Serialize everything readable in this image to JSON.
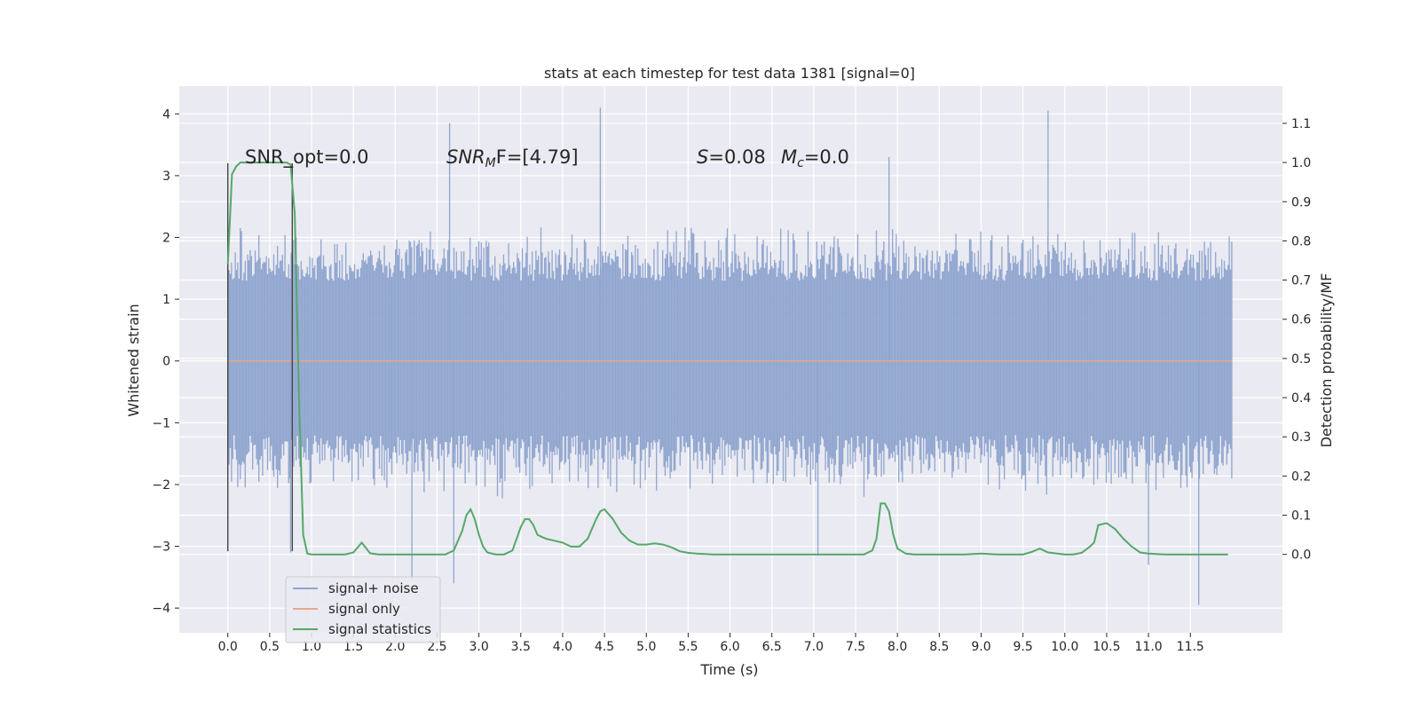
{
  "chart_data": {
    "type": "line",
    "title": "stats at each timestep for test data 1381 [signal=0]",
    "xlabel": "Time (s)",
    "ylabel": "Whitened strain",
    "y2label": "Detection probability/MF",
    "xlim": [
      -0.58,
      12.6
    ],
    "ylim": [
      -4.4,
      4.45
    ],
    "y2lim": [
      -0.2,
      1.195
    ],
    "x_ticks": [
      "0.0",
      "0.5",
      "1.0",
      "1.5",
      "2.0",
      "2.5",
      "3.0",
      "3.5",
      "4.0",
      "4.5",
      "5.0",
      "5.5",
      "6.0",
      "6.5",
      "7.0",
      "7.5",
      "8.0",
      "8.5",
      "9.0",
      "9.5",
      "10.0",
      "10.5",
      "11.0",
      "11.5"
    ],
    "y_ticks": [
      "4",
      "3",
      "2",
      "1",
      "0",
      "−1",
      "−2",
      "−3",
      "−4"
    ],
    "y2_ticks": [
      "1.1",
      "1.0",
      "0.9",
      "0.8",
      "0.7",
      "0.6",
      "0.5",
      "0.4",
      "0.3",
      "0.2",
      "0.1",
      "0.0"
    ],
    "grid": true,
    "legend_position": "lower-left",
    "annotations": {
      "snr_opt": "SNR_opt=0.0",
      "snr_mf_main": "SNR",
      "snr_mf_sub": "M",
      "snr_mf_rest": "F=[4.79]",
      "s_var": "S",
      "s_val": "=0.08",
      "mc_var": "M",
      "mc_sub": "c",
      "mc_val": "=0.0"
    },
    "markers": [
      0.0,
      0.77
    ],
    "series": [
      {
        "name": "signal+ noise",
        "color": "#8fa5cf",
        "x_range": [
          0.0,
          12.0
        ],
        "envelope": {
          "typical_max": 2.0,
          "typical_min": -2.0,
          "core_max": 1.3,
          "core_min": -1.2
        },
        "peaks": [
          [
            2.65,
            3.85
          ],
          [
            4.45,
            4.1
          ],
          [
            9.8,
            4.05
          ],
          [
            2.2,
            -3.55
          ],
          [
            2.7,
            -3.6
          ],
          [
            11.6,
            -3.95
          ],
          [
            0.75,
            -3.1
          ],
          [
            7.05,
            -3.15
          ],
          [
            7.9,
            3.3
          ],
          [
            11.0,
            -3.3
          ]
        ]
      },
      {
        "name": "signal only",
        "color": "#e8a78b",
        "x": [
          0.0,
          12.0
        ],
        "y": [
          0.0,
          0.0
        ]
      },
      {
        "name": "signal statistics",
        "color": "#55a868",
        "axis": "right",
        "x": [
          0.0,
          0.05,
          0.1,
          0.15,
          0.2,
          0.3,
          0.4,
          0.5,
          0.6,
          0.65,
          0.7,
          0.75,
          0.8,
          0.85,
          0.9,
          0.95,
          1.0,
          1.1,
          1.2,
          1.3,
          1.4,
          1.5,
          1.6,
          1.7,
          1.8,
          1.9,
          2.0,
          2.2,
          2.4,
          2.6,
          2.7,
          2.8,
          2.85,
          2.9,
          2.95,
          3.0,
          3.05,
          3.1,
          3.2,
          3.3,
          3.4,
          3.5,
          3.55,
          3.6,
          3.65,
          3.7,
          3.8,
          3.9,
          4.0,
          4.1,
          4.2,
          4.3,
          4.4,
          4.45,
          4.5,
          4.6,
          4.7,
          4.8,
          4.9,
          5.0,
          5.1,
          5.2,
          5.3,
          5.4,
          5.5,
          5.6,
          5.8,
          6.0,
          6.2,
          6.4,
          6.6,
          6.8,
          7.0,
          7.2,
          7.4,
          7.6,
          7.7,
          7.75,
          7.8,
          7.85,
          7.9,
          7.95,
          8.0,
          8.1,
          8.2,
          8.4,
          8.6,
          8.8,
          9.0,
          9.2,
          9.4,
          9.5,
          9.6,
          9.7,
          9.8,
          10.0,
          10.1,
          10.2,
          10.3,
          10.35,
          10.4,
          10.5,
          10.6,
          10.7,
          10.8,
          10.9,
          11.0,
          11.2,
          11.5,
          11.8,
          11.95
        ],
        "y": [
          0.74,
          0.97,
          0.99,
          1.0,
          1.0,
          1.0,
          1.0,
          1.0,
          1.0,
          1.0,
          1.0,
          0.995,
          0.87,
          0.4,
          0.05,
          0.002,
          0.0,
          0.0,
          0.0,
          0.0,
          0.0,
          0.005,
          0.03,
          0.003,
          0.0,
          0.0,
          0.0,
          0.0,
          0.0,
          0.0,
          0.01,
          0.06,
          0.1,
          0.115,
          0.09,
          0.05,
          0.02,
          0.005,
          0.0,
          0.0,
          0.01,
          0.07,
          0.09,
          0.09,
          0.075,
          0.05,
          0.04,
          0.035,
          0.03,
          0.02,
          0.02,
          0.04,
          0.09,
          0.11,
          0.115,
          0.09,
          0.055,
          0.035,
          0.025,
          0.025,
          0.028,
          0.025,
          0.018,
          0.008,
          0.004,
          0.002,
          0.0,
          0.0,
          0.0,
          0.0,
          0.0,
          0.0,
          0.0,
          0.0,
          0.0,
          0.0,
          0.01,
          0.04,
          0.13,
          0.13,
          0.11,
          0.05,
          0.015,
          0.002,
          0.0,
          0.0,
          0.0,
          0.0,
          0.002,
          0.0,
          0.0,
          0.0,
          0.006,
          0.015,
          0.005,
          0.0,
          0.0,
          0.004,
          0.02,
          0.03,
          0.075,
          0.08,
          0.065,
          0.04,
          0.02,
          0.005,
          0.002,
          0.0,
          0.0,
          0.0,
          0.0
        ]
      }
    ]
  }
}
